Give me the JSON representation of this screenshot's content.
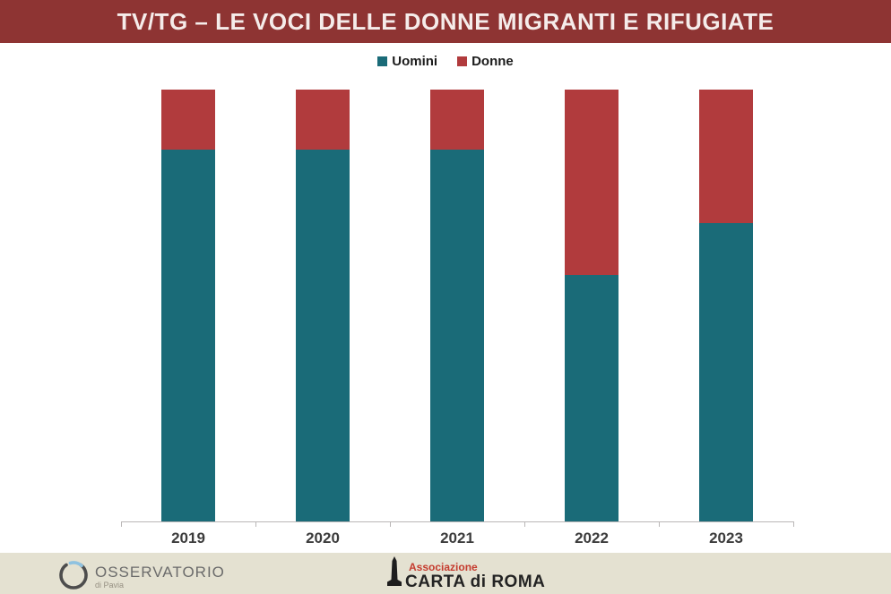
{
  "title": "TV/TG – LE VOCI DELLE DONNE MIGRANTI E RIFUGIATE",
  "chart_data": {
    "type": "bar",
    "stacked": true,
    "unit": "percent",
    "title": "TV/TG – LE VOCI DELLE DONNE MIGRANTI E RIFUGIATE",
    "categories": [
      "2019",
      "2020",
      "2021",
      "2022",
      "2023"
    ],
    "series": [
      {
        "name": "Uomini",
        "color": "#1a6b78",
        "values": [
          86,
          86,
          86,
          57,
          69
        ]
      },
      {
        "name": "Donne",
        "color": "#b13b3d",
        "values": [
          14,
          14,
          14,
          43,
          31
        ]
      }
    ],
    "xlabel": "",
    "ylabel": "",
    "ylim": [
      0,
      100
    ],
    "grid": false,
    "legend_position": "top",
    "value_labels": false
  },
  "footer": {
    "osservatorio_name": "OSSERVATORIO",
    "osservatorio_subtitle": "di Pavia",
    "carta_association": "Associazione",
    "carta_name": "CARTA di ROMA"
  },
  "colors": {
    "banner_bg": "#8e3433",
    "banner_text": "#f5ecea",
    "uomini": "#1a6b78",
    "donne": "#b13b3d",
    "axis": "#b9b6b6",
    "year_label": "#3c3c3c",
    "footer_bg": "#e4e1d1",
    "carta_red": "#c53b2e",
    "osservatorio_blue": "#8fc2e0"
  }
}
